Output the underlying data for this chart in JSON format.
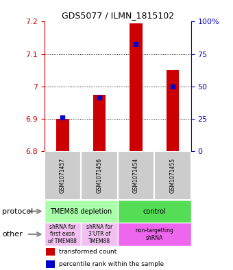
{
  "title": "GDS5077 / ILMN_1815102",
  "samples": [
    "GSM1071457",
    "GSM1071456",
    "GSM1071454",
    "GSM1071455"
  ],
  "red_values": [
    6.9,
    6.975,
    7.195,
    7.05
  ],
  "blue_values": [
    6.905,
    6.965,
    7.13,
    7.0
  ],
  "ylim_left": [
    6.8,
    7.2
  ],
  "yticks_left": [
    6.8,
    6.9,
    7.0,
    7.1,
    7.2
  ],
  "ytick_labels_left": [
    "6.8",
    "6.9",
    "7",
    "7.1",
    "7.2"
  ],
  "yticks_right": [
    0,
    25,
    50,
    75,
    100
  ],
  "ytick_labels_right": [
    "0",
    "25",
    "50",
    "75",
    "100%"
  ],
  "grid_lines": [
    6.9,
    7.0,
    7.1
  ],
  "protocol_row": [
    {
      "label": "TMEM88 depletion",
      "span": [
        0,
        2
      ],
      "color": "#aaffaa"
    },
    {
      "label": "control",
      "span": [
        2,
        4
      ],
      "color": "#55dd55"
    }
  ],
  "other_row": [
    {
      "label": "shRNA for\nfirst exon\nof TMEM88",
      "span": [
        0,
        1
      ],
      "color": "#f0c0f0"
    },
    {
      "label": "shRNA for\n3'UTR of\nTMEM88",
      "span": [
        1,
        2
      ],
      "color": "#f0c0f0"
    },
    {
      "label": "non-targetting\nshRNA",
      "span": [
        2,
        4
      ],
      "color": "#ee66ee"
    }
  ],
  "bar_color_red": "#cc0000",
  "bar_color_blue": "#0000cc",
  "sample_box_color": "#cccccc",
  "left_axis_color": "#cc0000",
  "right_axis_color": "#0000cc",
  "legend_red_label": "transformed count",
  "legend_blue_label": "percentile rank within the sample",
  "protocol_label": "protocol",
  "other_label": "other",
  "arrow_color": "#888888",
  "bar_width": 0.35
}
